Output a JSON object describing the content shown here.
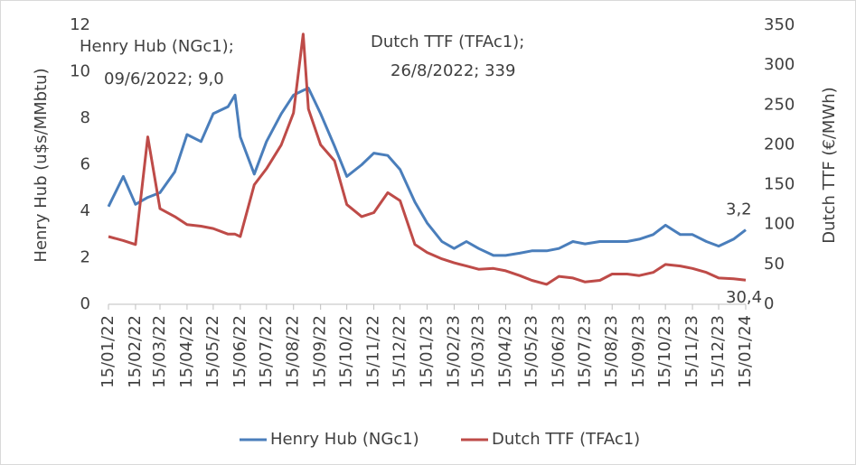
{
  "chart_data": {
    "type": "line",
    "y_label": "Henry Hub (u$s/MMbtu)",
    "y2_label": "Dutch TTF (€/MWh)",
    "annotations": [
      "Henry Hub (NGc1);",
      "09/6/2022; 9,0",
      "Dutch TTF (TFAc1);",
      "26/8/2022; 339"
    ],
    "x": [
      "15/01/22",
      "01/02/22",
      "15/02/22",
      "01/03/22",
      "15/03/22",
      "01/04/22",
      "15/04/22",
      "01/05/22",
      "15/05/22",
      "01/06/22",
      "09/06/22",
      "15/06/22",
      "01/07/22",
      "15/07/22",
      "01/08/22",
      "15/08/22",
      "26/08/22",
      "01/09/22",
      "15/09/22",
      "01/10/22",
      "15/10/22",
      "01/11/22",
      "15/11/22",
      "01/12/22",
      "15/12/22",
      "01/01/23",
      "15/01/23",
      "01/02/23",
      "15/02/23",
      "01/03/23",
      "15/03/23",
      "01/04/23",
      "15/04/23",
      "01/05/23",
      "15/05/23",
      "01/06/23",
      "15/06/23",
      "01/07/23",
      "15/07/23",
      "01/08/23",
      "15/08/23",
      "01/09/23",
      "15/09/23",
      "01/10/23",
      "15/10/23",
      "01/11/23",
      "15/11/23",
      "01/12/23",
      "15/12/23",
      "01/01/24",
      "15/01/24"
    ],
    "xlim": [
      "15/01/22",
      "15/01/24"
    ],
    "xticks": [
      "15/01/22",
      "15/02/22",
      "15/03/22",
      "15/04/22",
      "15/05/22",
      "15/06/22",
      "15/07/22",
      "15/08/22",
      "15/09/22",
      "15/10/22",
      "15/11/22",
      "15/12/22",
      "15/01/23",
      "15/02/23",
      "15/03/23",
      "15/04/23",
      "15/05/23",
      "15/06/23",
      "15/07/23",
      "15/08/23",
      "15/09/23",
      "15/10/23",
      "15/11/23",
      "15/12/23",
      "15/01/24"
    ],
    "series": [
      {
        "name": "Henry Hub (NGc1)",
        "color": "#4a7ebb",
        "values": [
          4.2,
          5.5,
          4.3,
          4.6,
          4.8,
          5.7,
          7.3,
          7.0,
          8.2,
          8.5,
          9.0,
          7.2,
          5.6,
          7.0,
          8.2,
          9.0,
          9.2,
          9.3,
          8.2,
          6.8,
          5.5,
          6.0,
          6.5,
          6.4,
          5.8,
          4.4,
          3.5,
          2.7,
          2.4,
          2.7,
          2.4,
          2.1,
          2.1,
          2.2,
          2.3,
          2.3,
          2.4,
          2.7,
          2.6,
          2.7,
          2.7,
          2.7,
          2.8,
          3.0,
          3.4,
          3.0,
          3.0,
          2.7,
          2.5,
          2.8,
          3.2
        ],
        "value_labels": [
          null,
          null,
          null,
          null,
          null,
          null,
          null,
          null,
          null,
          null,
          null,
          null,
          null,
          null,
          null,
          null,
          null,
          null,
          null,
          null,
          null,
          null,
          null,
          null,
          null,
          null,
          null,
          null,
          null,
          null,
          null,
          null,
          null,
          null,
          null,
          null,
          null,
          null,
          null,
          null,
          null,
          null,
          null,
          null,
          null,
          null,
          null,
          null,
          null,
          null,
          "3,2"
        ]
      },
      {
        "name": "Dutch TTF (TFAc1)",
        "color": "#be4b48",
        "axis": "y2",
        "values": [
          85,
          80,
          75,
          210,
          120,
          110,
          100,
          98,
          95,
          88,
          88,
          85,
          150,
          170,
          200,
          240,
          339,
          245,
          200,
          180,
          125,
          110,
          115,
          140,
          130,
          75,
          65,
          57,
          52,
          48,
          44,
          45,
          42,
          36,
          30,
          25,
          35,
          33,
          28,
          30,
          38,
          38,
          36,
          40,
          50,
          48,
          45,
          40,
          33,
          32,
          30.4
        ],
        "value_labels": [
          null,
          null,
          null,
          null,
          null,
          null,
          null,
          null,
          null,
          null,
          null,
          null,
          null,
          null,
          null,
          null,
          null,
          null,
          null,
          null,
          null,
          null,
          null,
          null,
          null,
          null,
          null,
          null,
          null,
          null,
          null,
          null,
          null,
          null,
          null,
          null,
          null,
          null,
          null,
          null,
          null,
          null,
          null,
          null,
          null,
          null,
          null,
          null,
          null,
          null,
          "30,4"
        ]
      }
    ],
    "ylim": [
      0,
      12
    ],
    "yticks": [
      0,
      2,
      4,
      6,
      8,
      10,
      12
    ],
    "y2lim": [
      0,
      350
    ],
    "y2ticks": [
      0,
      50,
      100,
      150,
      200,
      250,
      300,
      350
    ],
    "legend": "bottom"
  }
}
